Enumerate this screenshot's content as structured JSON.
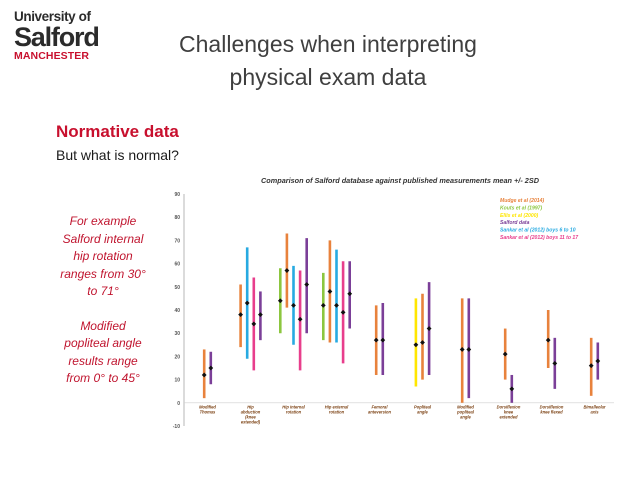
{
  "logo": {
    "line1": "University of",
    "line2": "Salford",
    "line3": "MANCHESTER"
  },
  "slide": {
    "title_line1": "Challenges when interpreting",
    "title_line2": "physical exam data",
    "subheading": "Normative data",
    "question": "But what is normal?",
    "note_lines": [
      "For example",
      "Salford internal",
      "hip rotation",
      "ranges from 30°",
      "to 71°"
    ],
    "note2_lines": [
      "Modified",
      "popliteal angle",
      "results range",
      "from 0° to 45°"
    ]
  },
  "colors": {
    "brand": "#c8102e",
    "title": "#3f3f3f"
  },
  "chart_data": {
    "type": "error-bar",
    "title": "Comparison of Salford database against published measurements mean +/- 2SD",
    "ylim": [
      -10,
      90
    ],
    "yticks": [
      -10,
      0,
      10,
      20,
      30,
      40,
      50,
      60,
      70,
      80,
      90
    ],
    "legend_position": "top-right",
    "series": [
      {
        "name": "Mudge et al (2014)",
        "color": "#e8823c"
      },
      {
        "name": "Kouts et al (1997)",
        "color": "#8cc63f"
      },
      {
        "name": "Ellis et al (2000)",
        "color": "#ffe600"
      },
      {
        "name": "Salford data",
        "color": "#7b3f98"
      },
      {
        "name": "Sankar et al (2012) boys 6 to 10",
        "color": "#27aae1"
      },
      {
        "name": "Sankar et al (2012) boys 11 to 17",
        "color": "#e83e8c"
      }
    ],
    "categories": [
      {
        "label": [
          "Modified",
          "Thomas"
        ],
        "bars": [
          {
            "series": "Mudge et al (2014)",
            "mean": 12,
            "low": 2,
            "high": 23
          },
          {
            "series": "Salford data",
            "mean": 15,
            "low": 8,
            "high": 22
          }
        ]
      },
      {
        "label": [
          "Hip",
          "abduction",
          "(knee",
          "extended)"
        ],
        "bars": [
          {
            "series": "Mudge et al (2014)",
            "mean": 38,
            "low": 24,
            "high": 51
          },
          {
            "series": "Sankar et al (2012) boys 6 to 10",
            "mean": 43,
            "low": 19,
            "high": 67
          },
          {
            "series": "Sankar et al (2012) boys 11 to 17",
            "mean": 34,
            "low": 14,
            "high": 54
          },
          {
            "series": "Salford data",
            "mean": 38,
            "low": 27,
            "high": 48
          }
        ]
      },
      {
        "label": [
          "Hip internal",
          "rotation"
        ],
        "bars": [
          {
            "series": "Kouts et al (1997)",
            "mean": 44,
            "low": 30,
            "high": 58
          },
          {
            "series": "Mudge et al (2014)",
            "mean": 57,
            "low": 41,
            "high": 73
          },
          {
            "series": "Sankar et al (2012) boys 6 to 10",
            "mean": 42,
            "low": 25,
            "high": 59
          },
          {
            "series": "Sankar et al (2012) boys 11 to 17",
            "mean": 36,
            "low": 14,
            "high": 57
          },
          {
            "series": "Salford data",
            "mean": 51,
            "low": 30,
            "high": 71
          }
        ]
      },
      {
        "label": [
          "Hip external",
          "rotation"
        ],
        "bars": [
          {
            "series": "Kouts et al (1997)",
            "mean": 42,
            "low": 27,
            "high": 56
          },
          {
            "series": "Mudge et al (2014)",
            "mean": 48,
            "low": 26,
            "high": 70
          },
          {
            "series": "Sankar et al (2012) boys 6 to 10",
            "mean": 42,
            "low": 26,
            "high": 66
          },
          {
            "series": "Sankar et al (2012) boys 11 to 17",
            "mean": 39,
            "low": 17,
            "high": 61
          },
          {
            "series": "Salford data",
            "mean": 47,
            "low": 32,
            "high": 61
          }
        ]
      },
      {
        "label": [
          "Femoral",
          "anteversion"
        ],
        "bars": [
          {
            "series": "Mudge et al (2014)",
            "mean": 27,
            "low": 12,
            "high": 42
          },
          {
            "series": "Salford data",
            "mean": 27,
            "low": 12,
            "high": 43
          }
        ]
      },
      {
        "label": [
          "Popliteal",
          "angle"
        ],
        "bars": [
          {
            "series": "Ellis et al (2000)",
            "mean": 25,
            "low": 7,
            "high": 45
          },
          {
            "series": "Mudge et al (2014)",
            "mean": 26,
            "low": 10,
            "high": 47
          },
          {
            "series": "Salford data",
            "mean": 32,
            "low": 12,
            "high": 52
          }
        ]
      },
      {
        "label": [
          "Modified",
          "popliteal",
          "angle"
        ],
        "bars": [
          {
            "series": "Mudge et al (2014)",
            "mean": 23,
            "low": 0,
            "high": 45
          },
          {
            "series": "Salford data",
            "mean": 23,
            "low": 2,
            "high": 45
          }
        ]
      },
      {
        "label": [
          "Dorsiflexion",
          "knee",
          "extended"
        ],
        "bars": [
          {
            "series": "Mudge et al (2014)",
            "mean": 21,
            "low": 10,
            "high": 32
          },
          {
            "series": "Salford data",
            "mean": 6,
            "low": 0,
            "high": 12
          }
        ]
      },
      {
        "label": [
          "Dorsiflexion",
          "knee flexed"
        ],
        "bars": [
          {
            "series": "Mudge et al (2014)",
            "mean": 27,
            "low": 15,
            "high": 40
          },
          {
            "series": "Salford data",
            "mean": 17,
            "low": 6,
            "high": 28
          }
        ]
      },
      {
        "label": [
          "Bimalleolar",
          "axis"
        ],
        "bars": [
          {
            "series": "Mudge et al (2014)",
            "mean": 16,
            "low": 3,
            "high": 28
          },
          {
            "series": "Salford data",
            "mean": 18,
            "low": 10,
            "high": 26
          }
        ]
      }
    ]
  }
}
